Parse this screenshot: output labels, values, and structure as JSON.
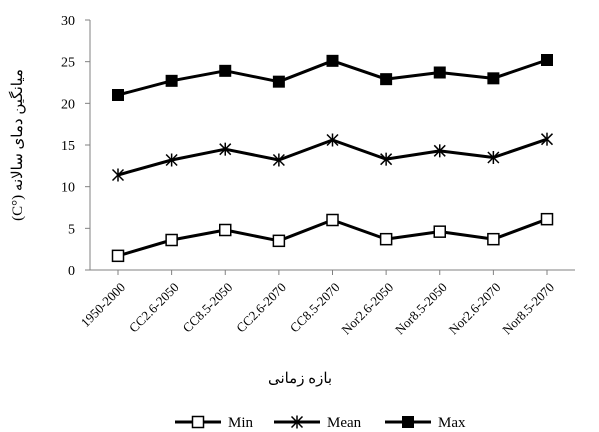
{
  "chart_data": {
    "type": "line",
    "categories": [
      "1950-2000",
      "CC2.6-2050",
      "CC8.5-2050",
      "CC2.6-2070",
      "CC8.5-2070",
      "Nor2.6-2050",
      "Nor8.5-2050",
      "Nor2.6-2070",
      "Nor8.5-2070"
    ],
    "series": [
      {
        "name": "Min",
        "marker": "open-square",
        "values": [
          1.7,
          3.6,
          4.8,
          3.5,
          6.0,
          3.7,
          4.6,
          3.7,
          6.1
        ]
      },
      {
        "name": "Mean",
        "marker": "star",
        "values": [
          11.4,
          13.2,
          14.5,
          13.2,
          15.6,
          13.3,
          14.3,
          13.5,
          15.7
        ]
      },
      {
        "name": "Max",
        "marker": "filled-square",
        "values": [
          21.0,
          22.7,
          23.9,
          22.6,
          25.1,
          22.9,
          23.7,
          23.0,
          25.2
        ]
      }
    ],
    "title": "",
    "xlabel": "بازه زمانی",
    "ylabel": "میانگین دمای سالانه (°C)",
    "ylim": [
      0,
      30
    ],
    "yticks": [
      0,
      5,
      10,
      15,
      20,
      25,
      30
    ],
    "grid": false,
    "legend_position": "bottom",
    "line_color": "#000000"
  }
}
